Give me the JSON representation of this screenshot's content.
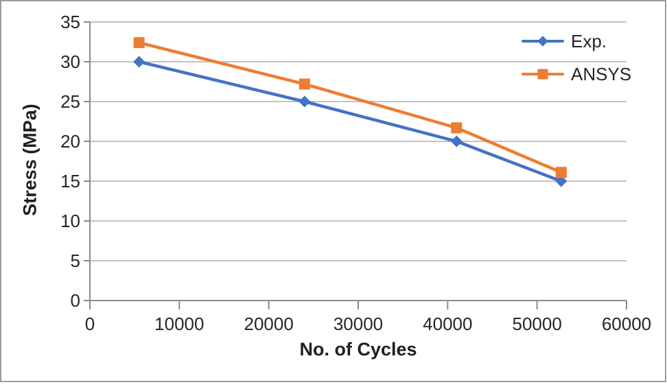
{
  "chart_data": {
    "type": "line",
    "title": "",
    "xlabel": "No. of Cycles",
    "ylabel": "Stress (MPa)",
    "x": [
      5500,
      24000,
      41000,
      52700
    ],
    "series": [
      {
        "name": "Exp.",
        "values": [
          30,
          25,
          20,
          15
        ],
        "color": "#4472C4",
        "marker": "diamond"
      },
      {
        "name": "ANSYS",
        "values": [
          32.4,
          27.2,
          21.7,
          16.1
        ],
        "color": "#ED7D31",
        "marker": "square"
      }
    ],
    "xlim": [
      0,
      60000
    ],
    "ylim": [
      0,
      35
    ],
    "x_ticks": [
      0,
      10000,
      20000,
      30000,
      40000,
      50000,
      60000
    ],
    "y_ticks": [
      0,
      5,
      10,
      15,
      20,
      25,
      30,
      35
    ],
    "grid": "horizontal-only",
    "legend_position": "top-right",
    "colors": {
      "gridline": "#c3c3c3",
      "axis": "#8a8a8a",
      "tick_text": "#262626",
      "frame_border": "#9c9c9c"
    }
  }
}
